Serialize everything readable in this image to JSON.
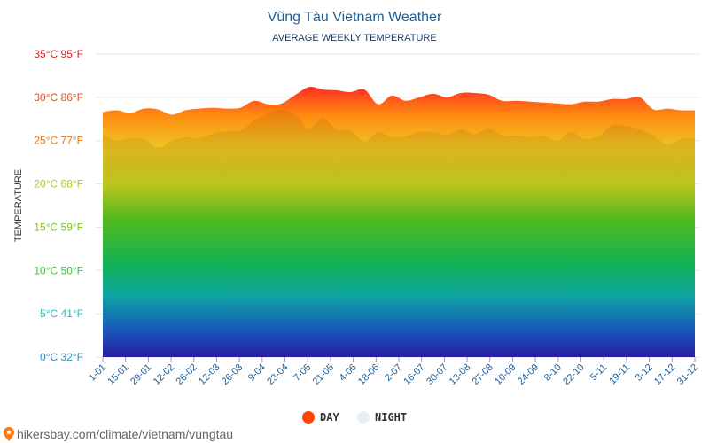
{
  "chart_data": {
    "type": "area",
    "title": "Vũng Tàu Vietnam Weather",
    "subtitle": "AVERAGE WEEKLY TEMPERATURE",
    "ylabel": "TEMPERATURE",
    "ylim": [
      0,
      35
    ],
    "y_ticks": [
      {
        "c": 0,
        "label": "0°C 32°F",
        "color": "#2f8fbf"
      },
      {
        "c": 5,
        "label": "5°C 41°F",
        "color": "#1fbfbf"
      },
      {
        "c": 10,
        "label": "10°C 50°F",
        "color": "#3fbf3f"
      },
      {
        "c": 15,
        "label": "15°C 59°F",
        "color": "#7fbf1f"
      },
      {
        "c": 20,
        "label": "20°C 68°F",
        "color": "#bfbf1f"
      },
      {
        "c": 25,
        "label": "25°C 77°F",
        "color": "#e07a10"
      },
      {
        "c": 30,
        "label": "30°C 86°F",
        "color": "#e0501a"
      },
      {
        "c": 35,
        "label": "35°C 95°F",
        "color": "#e0201a"
      }
    ],
    "x_labels": [
      "1-01",
      "15-01",
      "29-01",
      "12-02",
      "26-02",
      "12-03",
      "26-03",
      "9-04",
      "23-04",
      "7-05",
      "21-05",
      "4-06",
      "18-06",
      "2-07",
      "16-07",
      "30-07",
      "13-08",
      "27-08",
      "10-09",
      "24-09",
      "8-10",
      "22-10",
      "5-11",
      "19-11",
      "3-12",
      "17-12",
      "31-12"
    ],
    "series": [
      {
        "name": "DAY",
        "color": "#ff4500",
        "values": [
          28.3,
          28.5,
          28.2,
          28.7,
          28.6,
          28.0,
          28.5,
          28.7,
          28.8,
          28.7,
          28.8,
          29.6,
          29.2,
          29.3,
          30.3,
          31.2,
          30.9,
          30.8,
          30.6,
          30.9,
          29.2,
          30.2,
          29.6,
          30.0,
          30.4,
          30.0,
          30.5,
          30.5,
          30.3,
          29.6,
          29.6,
          29.5,
          29.4,
          29.3,
          29.2,
          29.5,
          29.5,
          29.8,
          29.8,
          30.0,
          28.6,
          28.7,
          28.5,
          28.5
        ]
      },
      {
        "name": "NIGHT",
        "color": "#e8eef4",
        "values": [
          25.8,
          25.0,
          25.3,
          25.2,
          24.2,
          25.0,
          25.4,
          25.3,
          25.8,
          26.1,
          26.2,
          27.3,
          28.2,
          28.6,
          28.0,
          26.4,
          27.6,
          26.3,
          26.2,
          24.9,
          26.0,
          25.4,
          25.5,
          26.0,
          26.0,
          25.7,
          26.3,
          25.8,
          26.4,
          25.6,
          25.6,
          25.4,
          25.5,
          25.0,
          26.0,
          25.2,
          25.5,
          26.8,
          26.7,
          26.3,
          25.6,
          24.6,
          25.2,
          25.3
        ]
      }
    ],
    "legend_placement": "bottom-center",
    "grid": true
  },
  "source_text": "hikersbay.com/climate/vietnam/vungtau"
}
